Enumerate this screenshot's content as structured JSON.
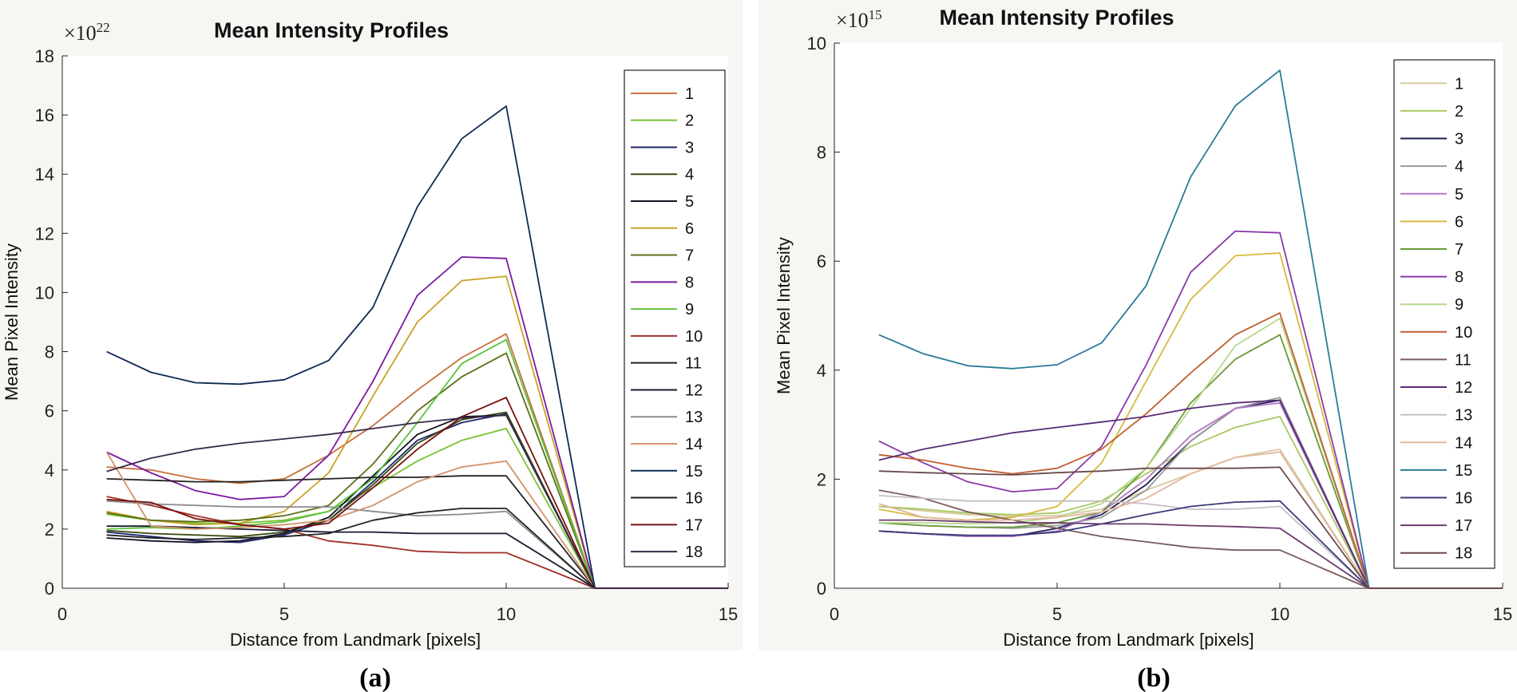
{
  "chart_data": [
    {
      "type": "line",
      "panel_label": "(a)",
      "title": "Mean Intensity Profiles",
      "xlabel": "Distance from Landmark [pixels]",
      "ylabel": "Mean Pixel Intensity",
      "exponent_base": "×10",
      "exponent_power": "22",
      "xlim": [
        0,
        15
      ],
      "ylim": [
        0,
        18
      ],
      "xticks": [
        0,
        5,
        10,
        15
      ],
      "yticks": [
        0,
        2,
        4,
        6,
        8,
        10,
        12,
        14,
        16,
        18
      ],
      "legend_position": "right",
      "x": [
        1,
        2,
        3,
        4,
        5,
        6,
        7,
        8,
        9,
        10,
        12,
        15
      ],
      "series": [
        {
          "name": "1",
          "color": "#c8703a",
          "values": [
            4.1,
            4.0,
            3.7,
            3.55,
            3.7,
            4.5,
            5.5,
            6.7,
            7.8,
            8.6,
            0,
            0
          ]
        },
        {
          "name": "2",
          "color": "#77c232",
          "values": [
            2.5,
            2.3,
            2.2,
            2.2,
            2.3,
            2.6,
            3.4,
            4.3,
            5.0,
            5.4,
            0,
            0
          ]
        },
        {
          "name": "3",
          "color": "#1f2570",
          "values": [
            1.9,
            1.75,
            1.6,
            1.55,
            1.8,
            2.3,
            3.6,
            5.0,
            5.6,
            5.9,
            0,
            0
          ]
        },
        {
          "name": "4",
          "color": "#3a4a10",
          "values": [
            1.95,
            1.85,
            1.8,
            1.75,
            1.9,
            2.3,
            3.5,
            4.9,
            5.7,
            5.95,
            0,
            0
          ]
        },
        {
          "name": "5",
          "color": "#111122",
          "values": [
            1.7,
            1.6,
            1.55,
            1.6,
            1.85,
            2.4,
            3.8,
            5.2,
            5.8,
            5.85,
            0,
            0
          ]
        },
        {
          "name": "6",
          "color": "#c9a227",
          "values": [
            2.6,
            2.3,
            2.15,
            2.2,
            2.6,
            3.9,
            6.5,
            9.0,
            10.4,
            10.55,
            0,
            0
          ]
        },
        {
          "name": "7",
          "color": "#5a7018",
          "values": [
            2.55,
            2.3,
            2.25,
            2.3,
            2.45,
            2.8,
            4.2,
            6.0,
            7.15,
            7.95,
            0,
            0
          ]
        },
        {
          "name": "8",
          "color": "#7a1aa0",
          "values": [
            4.6,
            3.9,
            3.3,
            3.0,
            3.1,
            4.5,
            7.0,
            9.9,
            11.2,
            11.15,
            0,
            0
          ]
        },
        {
          "name": "9",
          "color": "#5dc240",
          "values": [
            2.0,
            2.05,
            2.0,
            2.1,
            2.25,
            2.6,
            3.7,
            5.6,
            7.6,
            8.4,
            0,
            0
          ]
        },
        {
          "name": "10",
          "color": "#a0322a",
          "values": [
            3.1,
            2.8,
            2.45,
            2.15,
            2.0,
            1.6,
            1.45,
            1.25,
            1.2,
            1.2,
            0,
            0
          ]
        },
        {
          "name": "11",
          "color": "#222222",
          "values": [
            3.7,
            3.65,
            3.6,
            3.6,
            3.65,
            3.7,
            3.75,
            3.75,
            3.8,
            3.8,
            0,
            0
          ]
        },
        {
          "name": "12",
          "color": "#181830",
          "values": [
            2.1,
            2.1,
            2.05,
            2.0,
            1.95,
            1.9,
            1.9,
            1.85,
            1.85,
            1.85,
            0,
            0
          ]
        },
        {
          "name": "13",
          "color": "#8c8c8c",
          "values": [
            2.95,
            2.85,
            2.8,
            2.75,
            2.75,
            2.75,
            2.6,
            2.45,
            2.5,
            2.6,
            0,
            0
          ]
        },
        {
          "name": "14",
          "color": "#d4936a",
          "values": [
            4.6,
            2.1,
            2.0,
            2.05,
            2.15,
            2.3,
            2.8,
            3.6,
            4.1,
            4.3,
            0,
            0
          ]
        },
        {
          "name": "15",
          "color": "#0f2a55",
          "values": [
            8.0,
            7.3,
            6.95,
            6.9,
            7.05,
            7.7,
            9.5,
            12.9,
            15.2,
            16.3,
            0,
            0
          ]
        },
        {
          "name": "16",
          "color": "#202020",
          "values": [
            1.8,
            1.7,
            1.65,
            1.7,
            1.75,
            1.85,
            2.3,
            2.55,
            2.7,
            2.7,
            0,
            0
          ]
        },
        {
          "name": "17",
          "color": "#7a1010",
          "values": [
            3.0,
            2.9,
            2.35,
            2.15,
            2.0,
            2.2,
            3.4,
            4.7,
            5.8,
            6.45,
            0,
            0
          ]
        },
        {
          "name": "18",
          "color": "#3a2a4a",
          "values": [
            3.95,
            4.4,
            4.7,
            4.9,
            5.05,
            5.2,
            5.4,
            5.6,
            5.75,
            5.85,
            0,
            0
          ]
        }
      ]
    },
    {
      "type": "line",
      "panel_label": "(b)",
      "title": "Mean Intensity Profiles",
      "xlabel": "Distance from Landmark [pixels]",
      "ylabel": "Mean Pixel Intensity",
      "exponent_base": "×10",
      "exponent_power": "15",
      "xlim": [
        0,
        15
      ],
      "ylim": [
        0,
        10
      ],
      "xticks": [
        0,
        5,
        10,
        15
      ],
      "yticks": [
        0,
        2,
        4,
        6,
        8,
        10
      ],
      "legend_position": "right",
      "x": [
        1,
        2,
        3,
        4,
        5,
        6,
        7,
        8,
        9,
        10,
        12,
        15
      ],
      "series": [
        {
          "name": "1",
          "color": "#d8c9a0",
          "values": [
            1.5,
            1.42,
            1.35,
            1.32,
            1.33,
            1.45,
            1.8,
            2.1,
            2.4,
            2.55,
            0,
            0
          ]
        },
        {
          "name": "2",
          "color": "#a8c862",
          "values": [
            1.5,
            1.45,
            1.38,
            1.35,
            1.38,
            1.6,
            2.1,
            2.6,
            2.95,
            3.15,
            0,
            0
          ]
        },
        {
          "name": "3",
          "color": "#1a1f4a",
          "values": [
            1.05,
            1.0,
            0.95,
            0.95,
            1.1,
            1.35,
            1.9,
            2.7,
            3.3,
            3.45,
            0,
            0
          ]
        },
        {
          "name": "4",
          "color": "#9a9a9a",
          "values": [
            1.2,
            1.15,
            1.12,
            1.1,
            1.15,
            1.3,
            1.8,
            2.7,
            3.3,
            3.5,
            0,
            0
          ]
        },
        {
          "name": "5",
          "color": "#b078c8",
          "values": [
            1.05,
            1.0,
            0.95,
            0.95,
            1.05,
            1.4,
            2.0,
            2.8,
            3.3,
            3.4,
            0,
            0
          ]
        },
        {
          "name": "6",
          "color": "#d8b840",
          "values": [
            1.45,
            1.3,
            1.25,
            1.3,
            1.5,
            2.3,
            3.8,
            5.3,
            6.1,
            6.15,
            0,
            0
          ]
        },
        {
          "name": "7",
          "color": "#6a9a3a",
          "values": [
            1.2,
            1.15,
            1.12,
            1.12,
            1.2,
            1.4,
            2.2,
            3.4,
            4.2,
            4.65,
            0,
            0
          ]
        },
        {
          "name": "8",
          "color": "#8a38a8",
          "values": [
            2.7,
            2.3,
            1.95,
            1.77,
            1.83,
            2.6,
            4.1,
            5.8,
            6.55,
            6.52,
            0,
            0
          ]
        },
        {
          "name": "9",
          "color": "#b4d88a",
          "values": [
            1.2,
            1.2,
            1.18,
            1.2,
            1.3,
            1.55,
            2.2,
            3.3,
            4.45,
            4.95,
            0,
            0
          ]
        },
        {
          "name": "10",
          "color": "#c06030",
          "values": [
            2.45,
            2.35,
            2.2,
            2.1,
            2.2,
            2.55,
            3.2,
            3.95,
            4.65,
            5.05,
            0,
            0
          ]
        },
        {
          "name": "11",
          "color": "#7a5a5a",
          "values": [
            1.8,
            1.65,
            1.4,
            1.25,
            1.1,
            0.95,
            0.85,
            0.75,
            0.7,
            0.7,
            0,
            0
          ]
        },
        {
          "name": "12",
          "color": "#5a2a7a",
          "values": [
            2.35,
            2.55,
            2.7,
            2.85,
            2.95,
            3.05,
            3.15,
            3.3,
            3.4,
            3.45,
            0,
            0
          ]
        },
        {
          "name": "13",
          "color": "#c8bec8",
          "values": [
            1.7,
            1.65,
            1.6,
            1.6,
            1.6,
            1.6,
            1.55,
            1.45,
            1.45,
            1.5,
            0,
            0
          ]
        },
        {
          "name": "14",
          "color": "#e0b8a0",
          "values": [
            1.55,
            1.3,
            1.25,
            1.25,
            1.3,
            1.4,
            1.65,
            2.1,
            2.4,
            2.5,
            0,
            0
          ]
        },
        {
          "name": "15",
          "color": "#2a7a9a",
          "values": [
            4.65,
            4.3,
            4.08,
            4.03,
            4.1,
            4.5,
            5.55,
            7.55,
            8.85,
            9.5,
            0,
            0
          ]
        },
        {
          "name": "16",
          "color": "#3a3a7a",
          "values": [
            1.05,
            1.0,
            0.97,
            0.97,
            1.03,
            1.18,
            1.35,
            1.5,
            1.58,
            1.6,
            0,
            0
          ]
        },
        {
          "name": "17",
          "color": "#6a3a6a",
          "values": [
            1.25,
            1.25,
            1.22,
            1.2,
            1.2,
            1.18,
            1.18,
            1.15,
            1.13,
            1.1,
            0,
            0
          ]
        },
        {
          "name": "18",
          "color": "#6a4a4a",
          "values": [
            2.15,
            2.12,
            2.1,
            2.08,
            2.12,
            2.15,
            2.2,
            2.2,
            2.2,
            2.22,
            0,
            0
          ]
        }
      ]
    }
  ]
}
